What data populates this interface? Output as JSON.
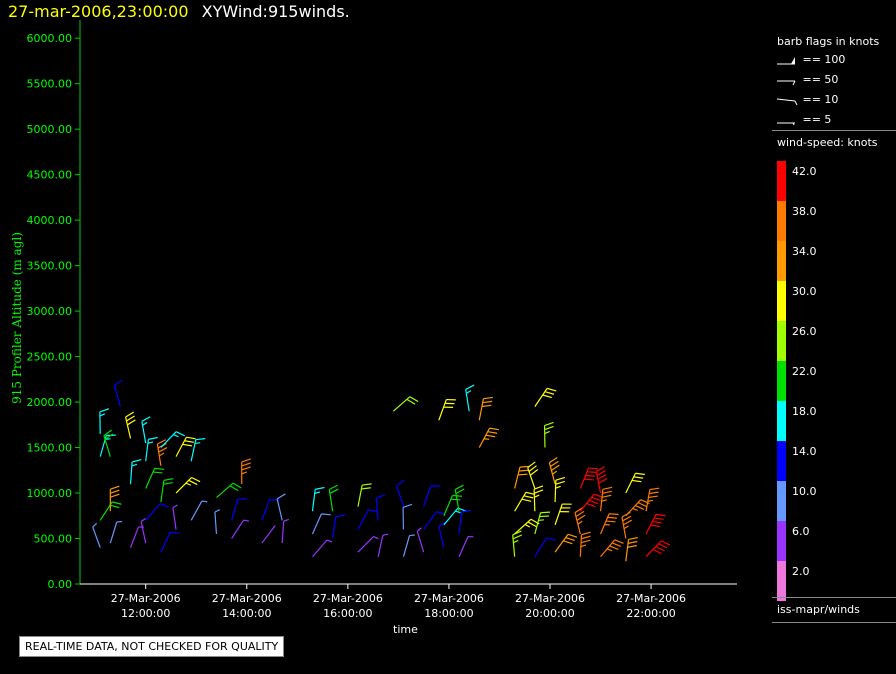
{
  "header": {
    "datetime": "27-mar-2006,23:00:00",
    "product": "XYWind:915winds."
  },
  "axes": {
    "ylabel": "915 Profiler Altitude (m agl)",
    "xlabel": "time",
    "ylim": [
      0,
      6200
    ],
    "yticks": [
      "0.00",
      "500.00",
      "1000.00",
      "1500.00",
      "2000.00",
      "2500.00",
      "3000.00",
      "3500.00",
      "4000.00",
      "4500.00",
      "5000.00",
      "5500.00",
      "6000.00"
    ],
    "xticks": [
      {
        "date": "27-Mar-2006",
        "time": "12:00:00"
      },
      {
        "date": "27-Mar-2006",
        "time": "14:00:00"
      },
      {
        "date": "27-Mar-2006",
        "time": "16:00:00"
      },
      {
        "date": "27-Mar-2006",
        "time": "18:00:00"
      },
      {
        "date": "27-Mar-2006",
        "time": "20:00:00"
      },
      {
        "date": "27-Mar-2006",
        "time": "22:00:00"
      }
    ]
  },
  "legend": {
    "title": "barb flags in knots",
    "flags": [
      {
        "label": "== 100",
        "kind": "pennant"
      },
      {
        "label": "== 50",
        "kind": "half-pennant"
      },
      {
        "label": "== 10",
        "kind": "full-barb"
      },
      {
        "label": "== 5",
        "kind": "half-barb"
      }
    ]
  },
  "colorbar": {
    "title": "wind-speed: knots",
    "levels": [
      {
        "label": "42.0",
        "color": "#ff0000"
      },
      {
        "label": "38.0",
        "color": "#ff7a00"
      },
      {
        "label": "34.0",
        "color": "#ff9a00"
      },
      {
        "label": "30.0",
        "color": "#ffff00"
      },
      {
        "label": "26.0",
        "color": "#a0ff00"
      },
      {
        "label": "22.0",
        "color": "#00e000"
      },
      {
        "label": "18.0",
        "color": "#00ffff"
      },
      {
        "label": "14.0",
        "color": "#0000ff"
      },
      {
        "label": "10.0",
        "color": "#6699ff"
      },
      {
        "label": "6.0",
        "color": "#9933ff"
      },
      {
        "label": "2.0",
        "color": "#ee77dd"
      }
    ]
  },
  "footer": "iss-mapr/winds",
  "qc_notice": "REAL-TIME DATA, NOT CHECKED FOR QUALITY",
  "chart_data": {
    "type": "scatter",
    "description_units": "x in hours (time of day, 27-Mar-2006), y in m agl, speed in knots",
    "xlim": [
      10.7,
      23.7
    ],
    "ylim": [
      0,
      6200
    ],
    "profiles": [
      {
        "x": 11.1,
        "points": [
          [
            400,
            8
          ],
          [
            700,
            20
          ],
          [
            1400,
            16
          ],
          [
            1650,
            17
          ]
        ]
      },
      {
        "x": 11.3,
        "points": [
          [
            450,
            9
          ],
          [
            800,
            33
          ],
          [
            1400,
            21
          ]
        ]
      },
      {
        "x": 11.5,
        "points": [
          [
            1950,
            14
          ]
        ]
      },
      {
        "x": 11.7,
        "points": [
          [
            400,
            6
          ],
          [
            1100,
            17
          ],
          [
            1600,
            30
          ]
        ]
      },
      {
        "x": 12.0,
        "points": [
          [
            450,
            7
          ],
          [
            700,
            14
          ],
          [
            1050,
            23
          ],
          [
            1350,
            16
          ],
          [
            1550,
            17
          ]
        ]
      },
      {
        "x": 12.3,
        "points": [
          [
            350,
            13
          ],
          [
            900,
            20
          ],
          [
            1300,
            38
          ],
          [
            1500,
            16
          ]
        ]
      },
      {
        "x": 12.6,
        "points": [
          [
            600,
            7
          ],
          [
            1000,
            28
          ],
          [
            1400,
            31
          ]
        ]
      },
      {
        "x": 12.9,
        "points": [
          [
            700,
            9
          ],
          [
            1350,
            17
          ]
        ]
      },
      {
        "x": 13.4,
        "points": [
          [
            550,
            8
          ],
          [
            950,
            23
          ]
        ]
      },
      {
        "x": 13.7,
        "points": [
          [
            500,
            6
          ],
          [
            700,
            14
          ]
        ]
      },
      {
        "x": 13.9,
        "points": [
          [
            1100,
            36
          ]
        ]
      },
      {
        "x": 14.3,
        "points": [
          [
            450,
            4
          ],
          [
            700,
            13
          ]
        ]
      },
      {
        "x": 14.7,
        "points": [
          [
            450,
            6
          ],
          [
            700,
            10
          ]
        ]
      },
      {
        "x": 15.3,
        "points": [
          [
            300,
            6
          ],
          [
            550,
            10
          ],
          [
            800,
            18
          ]
        ]
      },
      {
        "x": 15.7,
        "points": [
          [
            500,
            13
          ],
          [
            800,
            20
          ]
        ]
      },
      {
        "x": 16.2,
        "points": [
          [
            350,
            5
          ],
          [
            600,
            14
          ],
          [
            850,
            24
          ]
        ]
      },
      {
        "x": 16.6,
        "points": [
          [
            300,
            6
          ],
          [
            700,
            14
          ]
        ]
      },
      {
        "x": 16.9,
        "points": [
          [
            1900,
            24
          ]
        ]
      },
      {
        "x": 17.1,
        "points": [
          [
            300,
            9
          ],
          [
            600,
            11
          ],
          [
            850,
            14
          ]
        ]
      },
      {
        "x": 17.5,
        "points": [
          [
            350,
            6
          ],
          [
            600,
            13
          ],
          [
            850,
            14
          ]
        ]
      },
      {
        "x": 17.8,
        "points": [
          [
            1800,
            31
          ]
        ]
      },
      {
        "x": 17.9,
        "points": [
          [
            400,
            13
          ],
          [
            650,
            19
          ],
          [
            750,
            22
          ]
        ]
      },
      {
        "x": 18.2,
        "points": [
          [
            300,
            6
          ],
          [
            550,
            13
          ],
          [
            800,
            21
          ]
        ]
      },
      {
        "x": 18.4,
        "points": [
          [
            1900,
            17
          ]
        ]
      },
      {
        "x": 18.6,
        "points": [
          [
            1500,
            35
          ],
          [
            1800,
            32
          ]
        ]
      },
      {
        "x": 19.3,
        "points": [
          [
            300,
            27
          ],
          [
            550,
            29
          ],
          [
            800,
            31
          ],
          [
            1050,
            33
          ]
        ]
      },
      {
        "x": 19.7,
        "points": [
          [
            300,
            14
          ],
          [
            550,
            26
          ],
          [
            800,
            28
          ],
          [
            1050,
            30
          ],
          [
            1950,
            31
          ]
        ]
      },
      {
        "x": 19.9,
        "points": [
          [
            1500,
            26
          ]
        ]
      },
      {
        "x": 20.1,
        "points": [
          [
            350,
            33
          ],
          [
            650,
            31
          ],
          [
            900,
            28
          ],
          [
            1100,
            35
          ]
        ]
      },
      {
        "x": 20.6,
        "points": [
          [
            300,
            36
          ],
          [
            550,
            38
          ],
          [
            800,
            41
          ],
          [
            1050,
            42
          ]
        ]
      },
      {
        "x": 21.0,
        "points": [
          [
            300,
            37
          ],
          [
            550,
            38
          ],
          [
            800,
            38
          ],
          [
            1000,
            40
          ]
        ]
      },
      {
        "x": 21.5,
        "points": [
          [
            250,
            32
          ],
          [
            500,
            37
          ],
          [
            750,
            39
          ],
          [
            1000,
            30
          ]
        ]
      },
      {
        "x": 21.9,
        "points": [
          [
            300,
            41
          ],
          [
            550,
            42
          ],
          [
            800,
            38
          ]
        ]
      }
    ]
  }
}
